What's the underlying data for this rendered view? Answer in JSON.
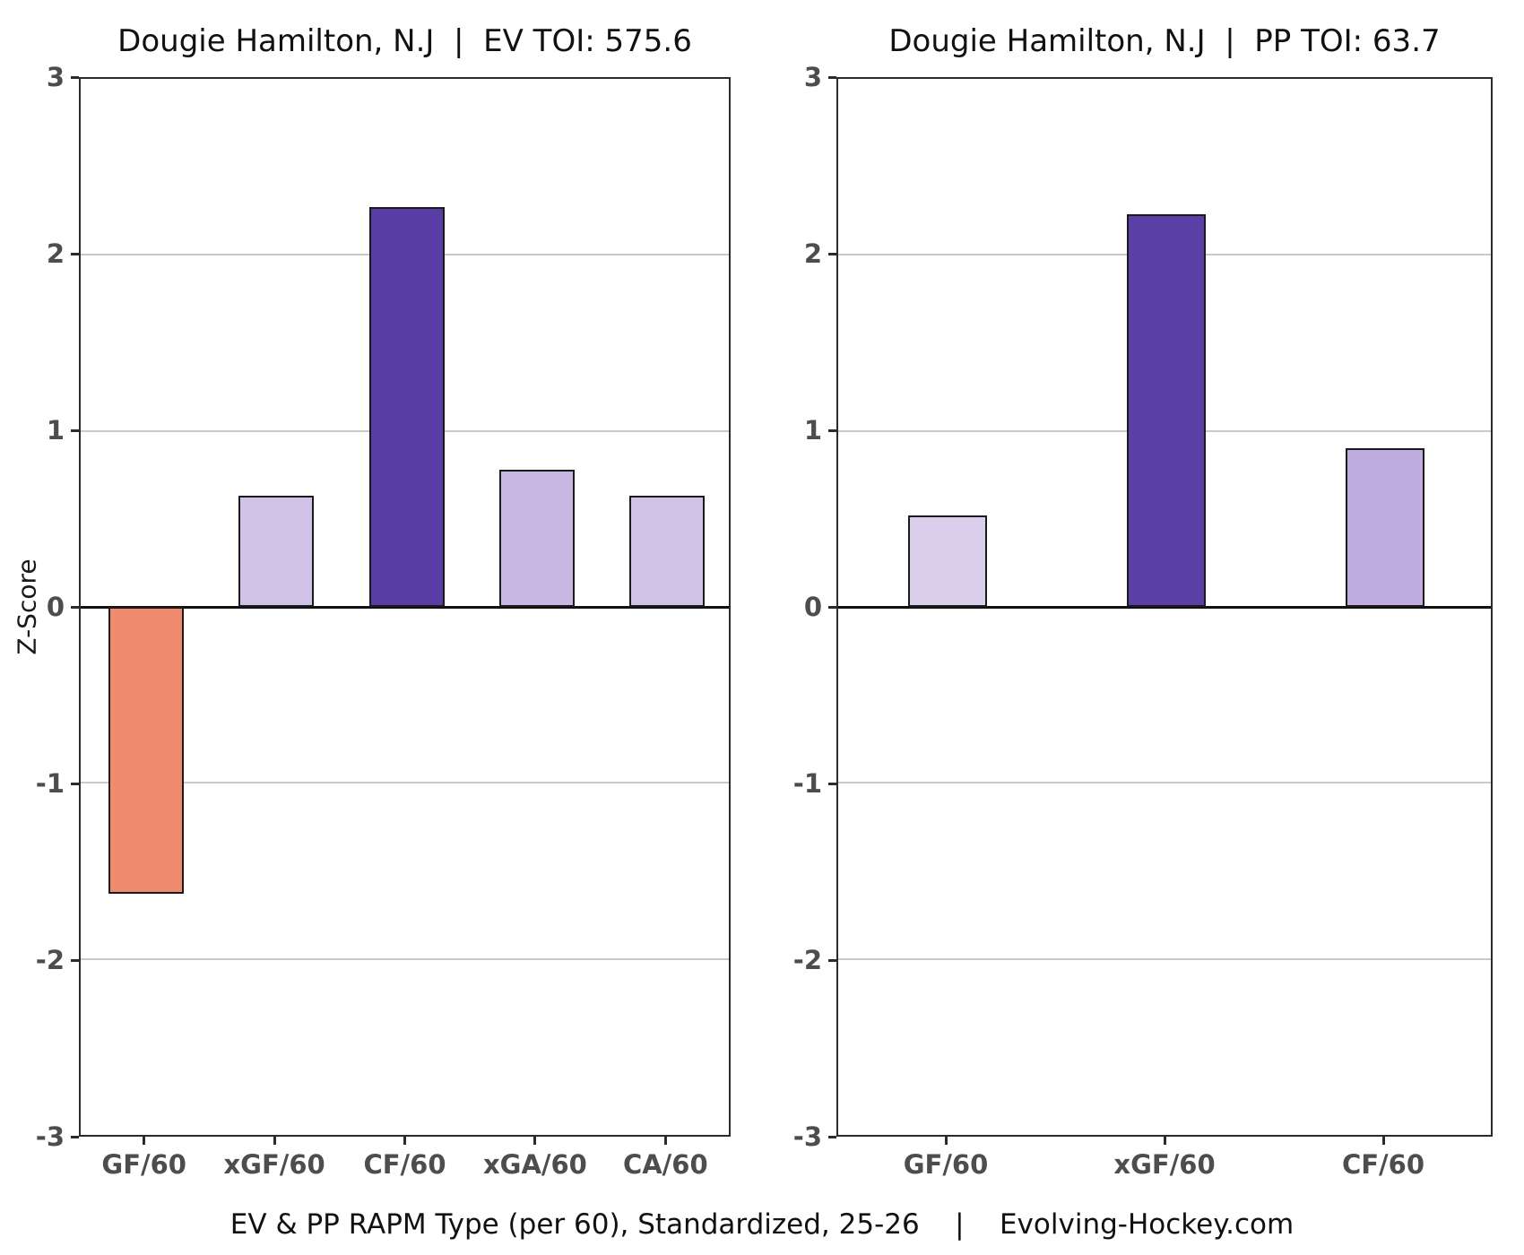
{
  "page": {
    "caption": "EV & PP RAPM Type (per 60), Standardized, 25-26    |    Evolving-Hockey.com"
  },
  "colors": {
    "negative_bar": "#F18B6F",
    "dark_purple": "#5B3EA5",
    "bar_border": "#1A1A1A",
    "axis": "#2B2B2B",
    "zero_line": "#111111",
    "gridline": "#C9C9C9",
    "tick_label": "#4D4D4D",
    "background": "#FFFFFF"
  },
  "chart_data": [
    {
      "type": "bar",
      "title": "Dougie Hamilton, N.J  |  EV TOI: 575.6",
      "categories": [
        "GF/60",
        "xGF/60",
        "CF/60",
        "xGA/60",
        "CA/60"
      ],
      "values": [
        -1.63,
        0.63,
        2.27,
        0.78,
        0.63
      ],
      "bar_colors": [
        "#F18B6F",
        "#D0C2E6",
        "#5A3DA4",
        "#C8B7E2",
        "#D0C2E6"
      ],
      "xlabel": "",
      "ylabel": "Z-Score",
      "ylim": [
        -3,
        3
      ],
      "yticks": [
        3,
        2,
        1,
        0,
        -1,
        -2,
        -3
      ],
      "grid": true,
      "legend": "none"
    },
    {
      "type": "bar",
      "title": "Dougie Hamilton, N.J  |  PP TOI: 63.7",
      "categories": [
        "GF/60",
        "xGF/60",
        "CF/60"
      ],
      "values": [
        0.52,
        2.23,
        0.9
      ],
      "bar_colors": [
        "#D9CEEC",
        "#5C3FA6",
        "#C0ACDE"
      ],
      "xlabel": "",
      "ylabel": "",
      "ylim": [
        -3,
        3
      ],
      "yticks": [
        3,
        2,
        1,
        0,
        -1,
        -2,
        -3
      ],
      "grid": true,
      "legend": "none"
    }
  ]
}
